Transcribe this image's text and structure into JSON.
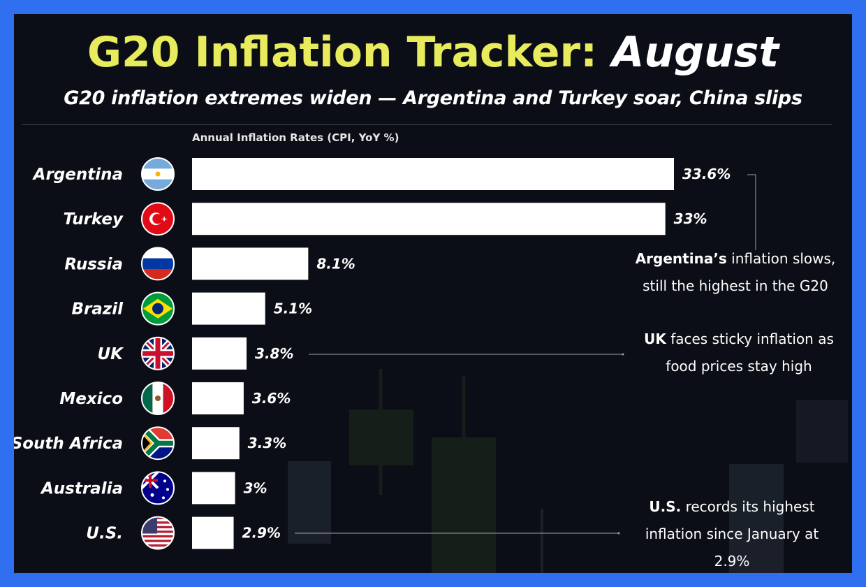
{
  "header": {
    "title_main": "G20 Inflation Tracker:",
    "title_month": "August",
    "subtitle": "G20 inflation extremes widen — Argentina and Turkey soar, China slips"
  },
  "colors": {
    "background": "#0b0e16",
    "frame": "#2f6ff0",
    "title": "#e8ec5c",
    "bar": "#ffffff"
  },
  "chart_data": {
    "type": "bar",
    "orientation": "horizontal",
    "xlabel": "Annual Inflation Rates (CPI, YoY %)",
    "categories": [
      "Argentina",
      "Turkey",
      "Russia",
      "Brazil",
      "UK",
      "Mexico",
      "South Africa",
      "Australia",
      "U.S."
    ],
    "values": [
      33.6,
      33,
      8.1,
      5.1,
      3.8,
      3.6,
      3.3,
      3,
      2.9
    ],
    "value_labels": [
      "33.6%",
      "33%",
      "8.1%",
      "5.1%",
      "3.8%",
      "3.6%",
      "3.3%",
      "3%",
      "2.9%"
    ],
    "flags": [
      "argentina-flag-icon",
      "turkey-flag-icon",
      "russia-flag-icon",
      "brazil-flag-icon",
      "uk-flag-icon",
      "mexico-flag-icon",
      "south-africa-flag-icon",
      "australia-flag-icon",
      "us-flag-icon"
    ],
    "grid": false,
    "legend": "none"
  },
  "annotations": [
    {
      "bold": "Argentina’s",
      "rest": " inflation slows,",
      "line2": "still the highest in the G20",
      "line3": ""
    },
    {
      "bold": "UK",
      "rest": " faces sticky inflation as",
      "line2": "food prices stay high",
      "line3": ""
    },
    {
      "bold": "U.S.",
      "rest": " records its highest",
      "line2": "inflation since January at",
      "line3": "2.9%"
    }
  ]
}
